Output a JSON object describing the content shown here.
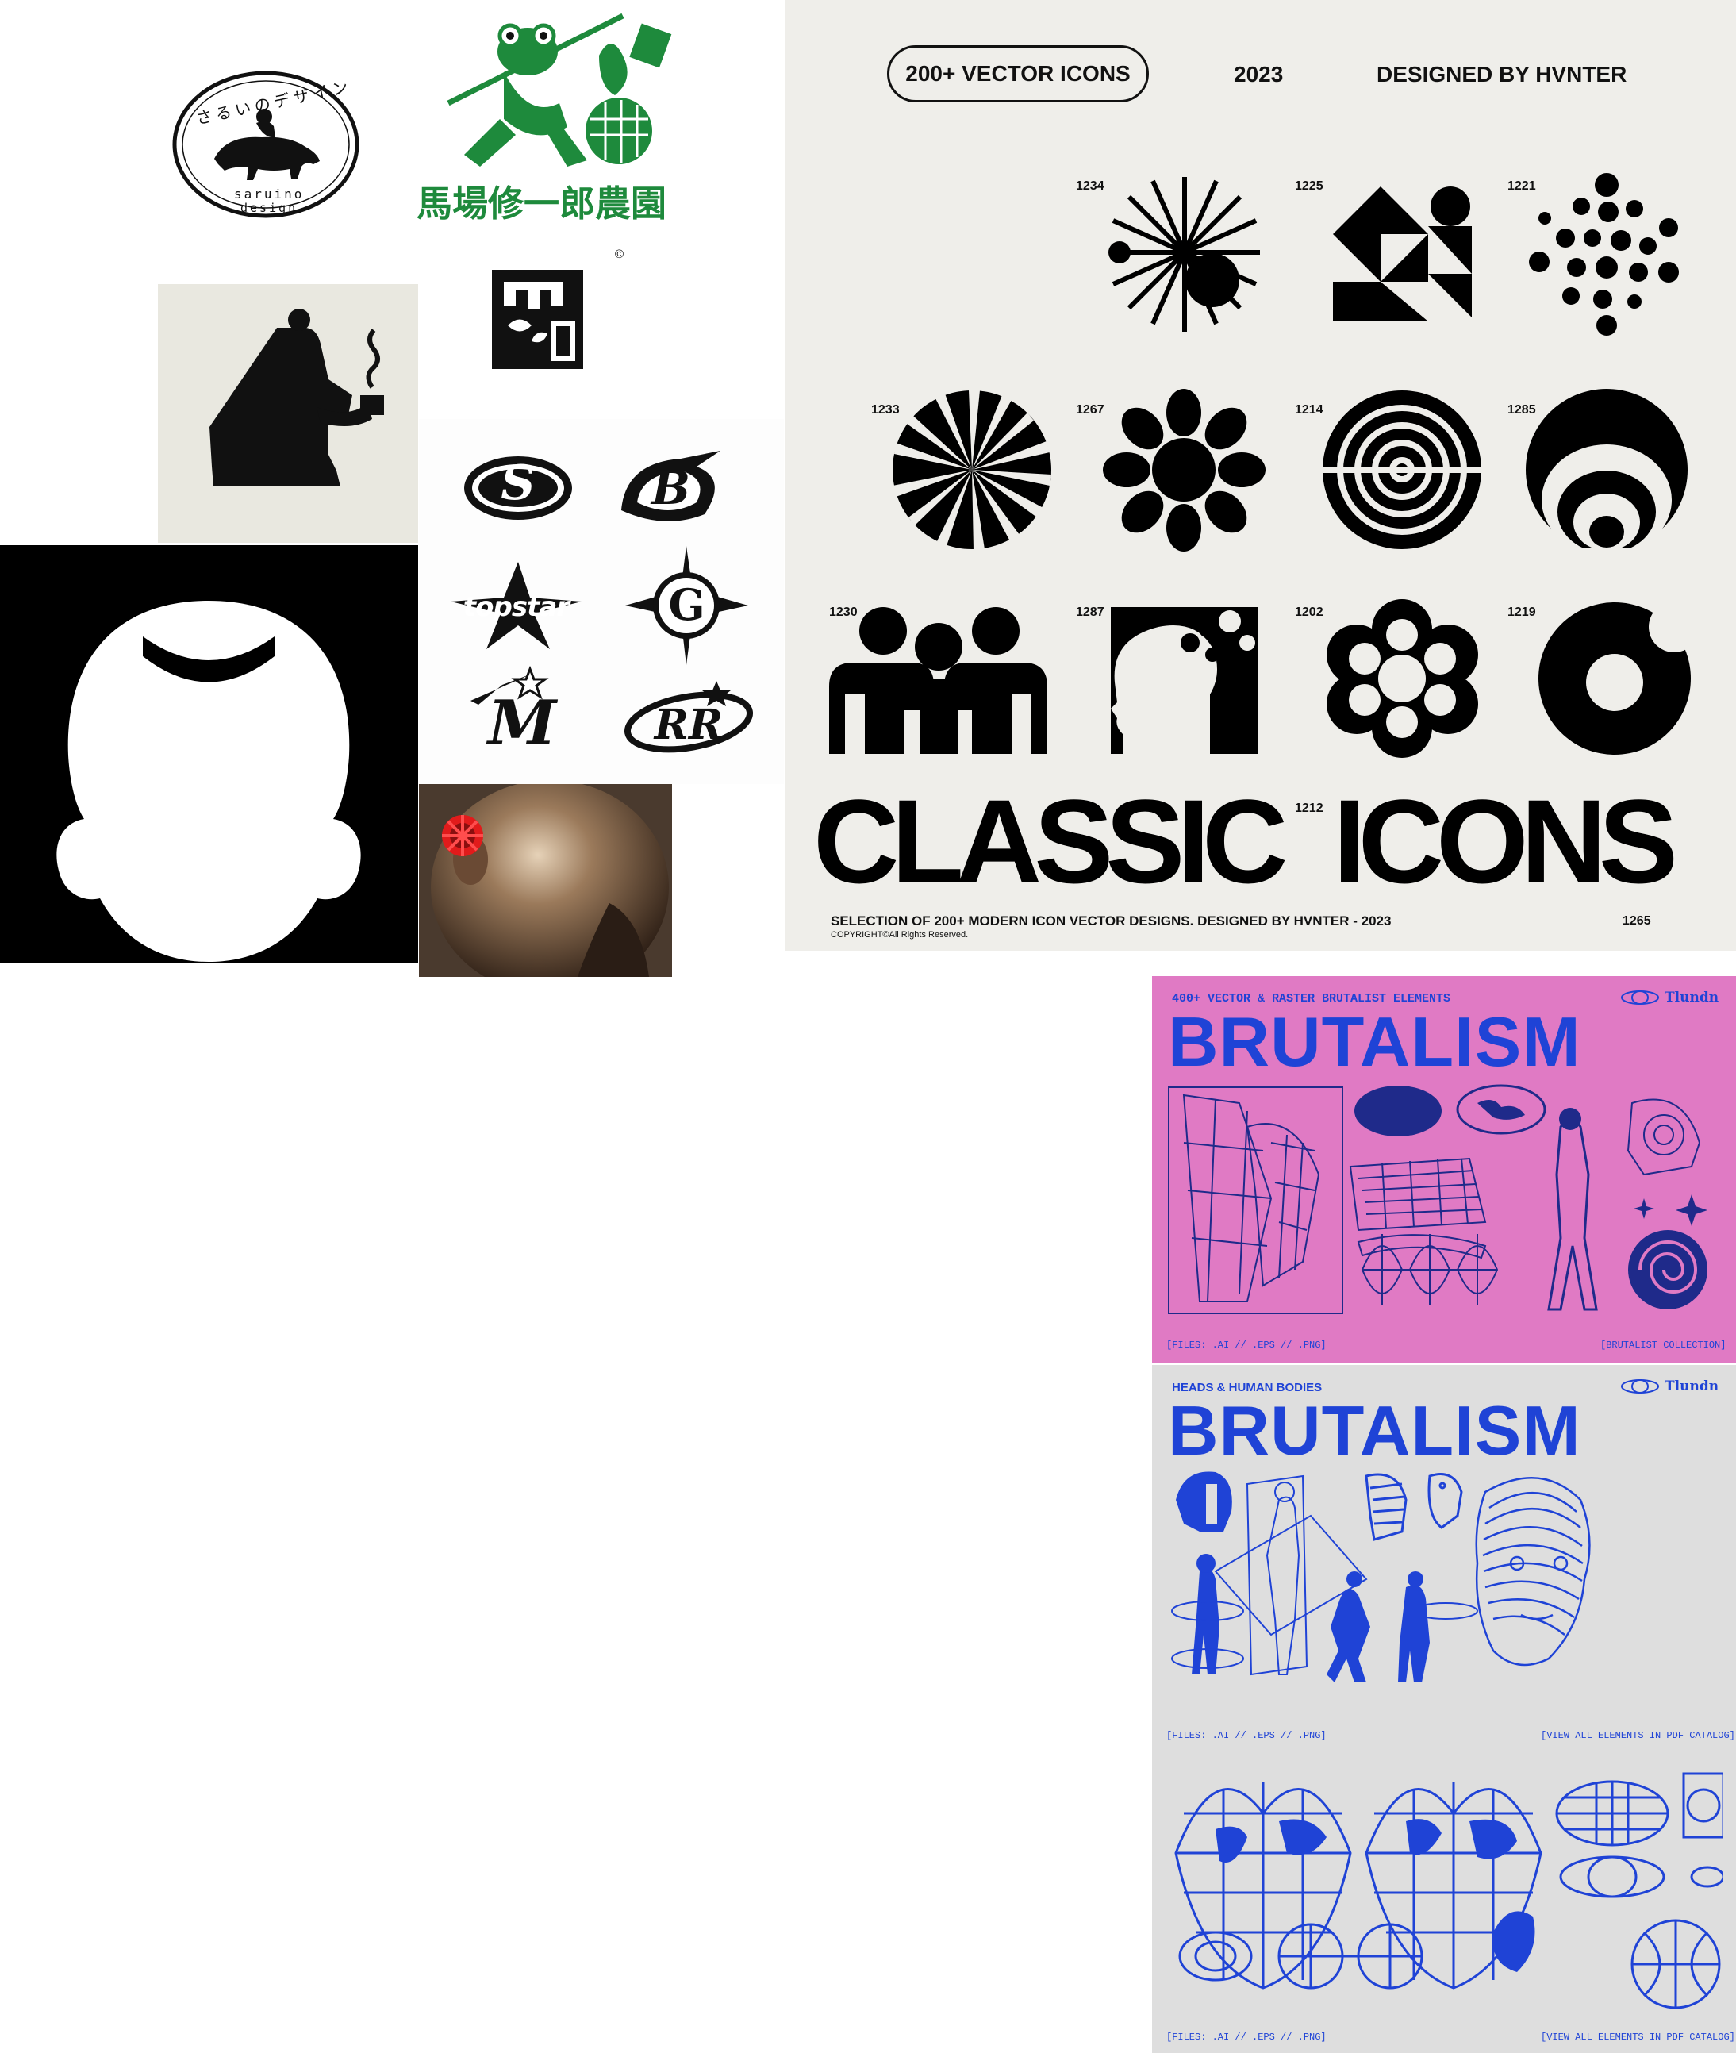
{
  "colors": {
    "cream": "#efeeea",
    "black": "#000000",
    "green": "#1e8a3c",
    "pink": "#e07ac4",
    "blue": "#1f43d6",
    "paper_grey": "#dcdcdc",
    "red": "#e11b1b"
  },
  "saruino": {
    "jp_text": "さるいのデザイン",
    "en_line1": "saruino",
    "en_line2": "design"
  },
  "farm": {
    "name": "馬場修一郎農園"
  },
  "copyright_mark": "©",
  "gothic_logos": {
    "items": [
      "S",
      "B",
      "topstar",
      "G",
      "M",
      "RR"
    ]
  },
  "classic_icons": {
    "pill": "200+ VECTOR ICONS",
    "year": "2023",
    "designer": "DESIGNED BY HVNTER",
    "icon_numbers": [
      "1234",
      "1225",
      "1221",
      "1233",
      "1267",
      "1214",
      "1285",
      "1230",
      "1287",
      "1202",
      "1219",
      "1212",
      "1265"
    ],
    "title_left": "CLASSIC",
    "title_right": "ICONS",
    "subtitle": "SELECTION OF 200+ MODERN ICON VECTOR DESIGNS. DESIGNED BY HVNTER - 2023",
    "copyright": "COPYRIGHT©All Rights Reserved."
  },
  "brutalism_pink": {
    "tagline": "400+ VECTOR & RASTER BRUTALIST ELEMENTS",
    "brand": "Tlundn",
    "title": "BRUTALISM",
    "files": "[FILES: .AI // .EPS // .PNG]",
    "collection": "[BRUTALIST COLLECTION]"
  },
  "brutalism_blue": {
    "tagline": "HEADS & HUMAN BODIES",
    "brand": "Tlundn",
    "title": "BRUTALISM",
    "files": "[FILES: .AI // .EPS // .PNG]",
    "catalog": "[VIEW ALL ELEMENTS IN PDF CATALOG]"
  },
  "brutalism_globes": {
    "files": "[FILES: .AI // .EPS // .PNG]",
    "catalog": "[VIEW ALL ELEMENTS IN PDF CATALOG]"
  }
}
